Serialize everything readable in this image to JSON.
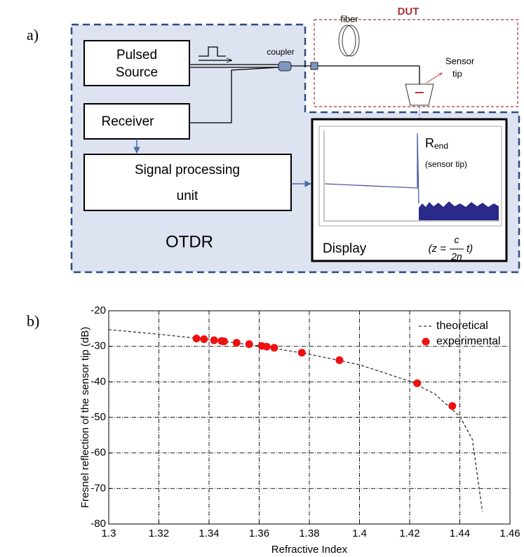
{
  "panel_a": {
    "label": "a)",
    "dut": "DUT",
    "pulsed_source": [
      "Pulsed",
      "Source"
    ],
    "coupler": "coupler",
    "fiber": "fiber",
    "sensor_tip": [
      "Sensor",
      "tip"
    ],
    "receiver": "Receiver",
    "signal_processing": [
      "Signal processing",
      "unit"
    ],
    "otdr": "OTDR",
    "display": "Display",
    "r_end": {
      "main": "R",
      "sub": "end"
    },
    "r_end_note": "(sensor tip)",
    "formula": {
      "open": "(z =",
      "num": "c",
      "den": "2n",
      "close": "t)"
    }
  },
  "panel_b_label": "b)",
  "chart_data": {
    "type": "scatter",
    "xlabel": "Refractive Index",
    "ylabel": "Fresnel reflection of the sensor tip (dB)",
    "xlim": [
      1.3,
      1.46
    ],
    "ylim": [
      -80,
      -20
    ],
    "xticks": [
      1.3,
      1.32,
      1.34,
      1.36,
      1.38,
      1.4,
      1.42,
      1.44,
      1.46
    ],
    "yticks": [
      -80,
      -70,
      -60,
      -50,
      -40,
      -30,
      -20
    ],
    "grid": true,
    "legend": "upper right",
    "series": [
      {
        "name": "theoretical",
        "color": "#333333",
        "mode": "line",
        "x": [
          1.3,
          1.32,
          1.34,
          1.36,
          1.38,
          1.4,
          1.42,
          1.43,
          1.44,
          1.445,
          1.449
        ],
        "values": [
          -25.3,
          -26.6,
          -28.1,
          -29.9,
          -32.2,
          -35.2,
          -39.8,
          -43.4,
          -49.7,
          -56.2,
          -76.5
        ]
      },
      {
        "name": "experimental",
        "color": "#ee1111",
        "mode": "markers",
        "x": [
          1.335,
          1.338,
          1.342,
          1.345,
          1.346,
          1.351,
          1.356,
          1.361,
          1.363,
          1.366,
          1.377,
          1.392,
          1.423,
          1.437
        ],
        "values": [
          -27.8,
          -28,
          -28.3,
          -28.5,
          -28.6,
          -29,
          -29.4,
          -29.9,
          -30.1,
          -30.4,
          -31.8,
          -33.9,
          -40.4,
          -46.8
        ]
      }
    ]
  }
}
